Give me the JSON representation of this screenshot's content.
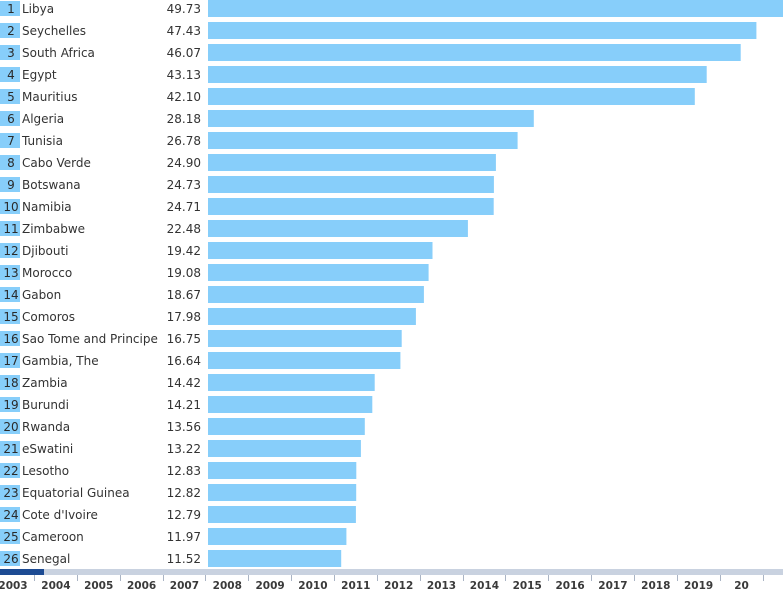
{
  "chart_data": {
    "type": "bar",
    "orientation": "horizontal",
    "ranks": [
      "1",
      "2",
      "3",
      "4",
      "5",
      "6",
      "7",
      "8",
      "9",
      "10",
      "11",
      "12",
      "13",
      "14",
      "15",
      "16",
      "17",
      "18",
      "19",
      "20",
      "21",
      "22",
      "23",
      "24",
      "25",
      "26"
    ],
    "categories": [
      "Libya",
      "Seychelles",
      "South Africa",
      "Egypt",
      "Mauritius",
      "Algeria",
      "Tunisia",
      "Cabo Verde",
      "Botswana",
      "Namibia",
      "Zimbabwe",
      "Djibouti",
      "Morocco",
      "Gabon",
      "Comoros",
      "Sao Tome and Principe",
      "Gambia, The",
      "Zambia",
      "Burundi",
      "Rwanda",
      "eSwatini",
      "Lesotho",
      "Equatorial Guinea",
      "Cote d'Ivoire",
      "Cameroon",
      "Senegal"
    ],
    "value_labels": [
      "49.73",
      "47.43",
      "46.07",
      "43.13",
      "42.10",
      "28.18",
      "26.78",
      "24.90",
      "24.73",
      "24.71",
      "22.48",
      "19.42",
      "19.08",
      "18.67",
      "17.98",
      "16.75",
      "16.64",
      "14.42",
      "14.21",
      "13.56",
      "13.22",
      "12.83",
      "12.82",
      "12.79",
      "11.97",
      "11.52"
    ],
    "values": [
      49.73,
      47.43,
      46.07,
      43.13,
      42.1,
      28.18,
      26.78,
      24.9,
      24.73,
      24.71,
      22.48,
      19.42,
      19.08,
      18.67,
      17.98,
      16.75,
      16.64,
      14.42,
      14.21,
      13.56,
      13.22,
      12.83,
      12.82,
      12.79,
      11.97,
      11.52
    ],
    "xlim": [
      0,
      49.73
    ],
    "grid": false,
    "colors": {
      "bar": "#87cefa",
      "rank_box": "#87cefa"
    }
  },
  "timeline": {
    "years": [
      "2003",
      "2004",
      "2005",
      "2006",
      "2007",
      "2008",
      "2009",
      "2010",
      "2011",
      "2012",
      "2013",
      "2014",
      "2015",
      "2016",
      "2017",
      "2018",
      "2019",
      "20"
    ],
    "current": "2003",
    "colors": {
      "track": "#c9d2e0",
      "progress": "#1d4b93"
    }
  }
}
